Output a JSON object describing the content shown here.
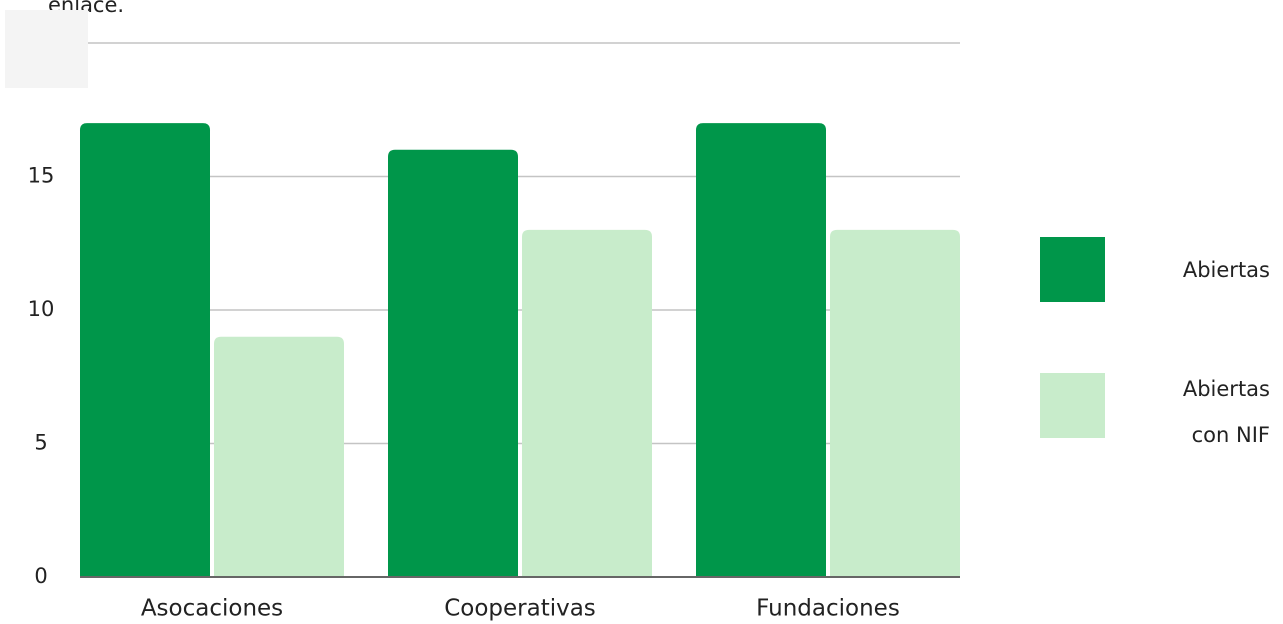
{
  "note_text": "enlace.",
  "chart_data": {
    "type": "bar",
    "categories": [
      "Asocaciones",
      "Cooperativas",
      "Fundaciones"
    ],
    "series": [
      {
        "name": "Abiertas",
        "color": "#00964a",
        "values": [
          17,
          16,
          17
        ]
      },
      {
        "name": "Abiertas con NIF",
        "color": "#c8eccb",
        "values": [
          9,
          13,
          13
        ]
      }
    ],
    "ylim": [
      0,
      20
    ],
    "yticks": [
      0,
      5,
      10,
      15
    ],
    "grid": true,
    "legend": "right"
  }
}
